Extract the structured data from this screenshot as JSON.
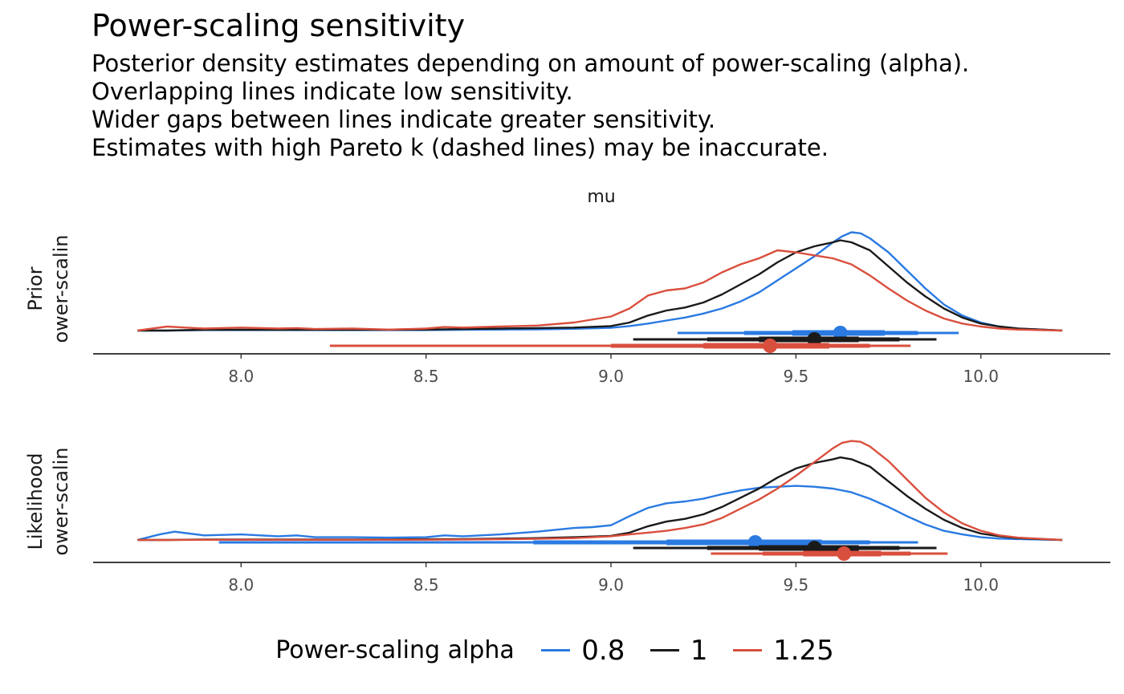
{
  "chart_data": {
    "type": "line",
    "title": "Power-scaling sensitivity",
    "subtitle": [
      "Posterior density estimates depending on amount of power-scaling (alpha).",
      "Overlapping lines indicate low sensitivity.",
      "Wider gaps between lines indicate greater sensitivity.",
      "Estimates with high Pareto k (dashed lines) may be inaccurate."
    ],
    "facet_label": "mu",
    "xlim": [
      7.6,
      10.35
    ],
    "x_ticks": [
      "8.0",
      "8.5",
      "9.0",
      "9.5",
      "10.0"
    ],
    "x_tick_values": [
      8.0,
      8.5,
      9.0,
      9.5,
      10.0
    ],
    "legend": {
      "title": "Power-scaling alpha",
      "placement": "bottom",
      "entries": [
        {
          "label": "0.8",
          "color": "#2a7ae2"
        },
        {
          "label": "1",
          "color": "#1a1a1a"
        },
        {
          "label": "1.25",
          "color": "#d94f3d"
        }
      ]
    },
    "panels": [
      {
        "row_label_line1": "Prior",
        "row_label_line2": "ower-scalin",
        "ylim": [
          0,
          1.12
        ],
        "series": [
          {
            "name": "0.8",
            "color": "#2a7ae2",
            "x": [
              7.72,
              7.8,
              7.9,
              8.0,
              8.1,
              8.2,
              8.3,
              8.4,
              8.5,
              8.6,
              8.7,
              8.8,
              8.9,
              9.0,
              9.05,
              9.1,
              9.15,
              9.2,
              9.25,
              9.3,
              9.35,
              9.4,
              9.45,
              9.5,
              9.55,
              9.6,
              9.625,
              9.65,
              9.675,
              9.7,
              9.75,
              9.8,
              9.85,
              9.9,
              9.95,
              10.0,
              10.05,
              10.1,
              10.22
            ],
            "y": [
              0,
              0,
              0.005,
              0.005,
              0.005,
              0.005,
              0.005,
              0.005,
              0.005,
              0.008,
              0.01,
              0.012,
              0.018,
              0.028,
              0.045,
              0.07,
              0.1,
              0.13,
              0.17,
              0.22,
              0.29,
              0.38,
              0.5,
              0.62,
              0.74,
              0.88,
              0.94,
              0.98,
              0.97,
              0.92,
              0.78,
              0.6,
              0.42,
              0.26,
              0.15,
              0.08,
              0.04,
              0.02,
              0
            ]
          },
          {
            "name": "1",
            "color": "#1a1a1a",
            "x": [
              7.72,
              7.8,
              7.9,
              8.0,
              8.1,
              8.2,
              8.3,
              8.4,
              8.5,
              8.6,
              8.7,
              8.8,
              8.9,
              9.0,
              9.05,
              9.1,
              9.15,
              9.2,
              9.25,
              9.3,
              9.35,
              9.4,
              9.45,
              9.5,
              9.55,
              9.6,
              9.62,
              9.65,
              9.7,
              9.75,
              9.8,
              9.85,
              9.9,
              9.95,
              10.0,
              10.05,
              10.1,
              10.22
            ],
            "y": [
              0,
              0,
              0.008,
              0.008,
              0.008,
              0.008,
              0.008,
              0.008,
              0.01,
              0.015,
              0.02,
              0.025,
              0.03,
              0.045,
              0.08,
              0.15,
              0.2,
              0.23,
              0.28,
              0.36,
              0.46,
              0.56,
              0.68,
              0.78,
              0.84,
              0.88,
              0.9,
              0.88,
              0.8,
              0.64,
              0.48,
              0.34,
              0.22,
              0.13,
              0.07,
              0.04,
              0.02,
              0
            ]
          },
          {
            "name": "1.25",
            "color": "#d94f3d",
            "x": [
              7.72,
              7.8,
              7.85,
              7.9,
              8.0,
              8.1,
              8.15,
              8.2,
              8.3,
              8.4,
              8.5,
              8.55,
              8.6,
              8.7,
              8.8,
              8.9,
              9.0,
              9.05,
              9.1,
              9.15,
              9.2,
              9.25,
              9.3,
              9.35,
              9.4,
              9.45,
              9.5,
              9.55,
              9.6,
              9.65,
              9.7,
              9.75,
              9.8,
              9.85,
              9.9,
              9.95,
              10.0,
              10.05,
              10.1,
              10.22
            ],
            "y": [
              0,
              0.04,
              0.03,
              0.02,
              0.03,
              0.02,
              0.025,
              0.015,
              0.02,
              0.01,
              0.02,
              0.035,
              0.03,
              0.04,
              0.05,
              0.08,
              0.14,
              0.22,
              0.35,
              0.4,
              0.42,
              0.48,
              0.58,
              0.66,
              0.72,
              0.8,
              0.78,
              0.75,
              0.72,
              0.66,
              0.55,
              0.42,
              0.3,
              0.2,
              0.12,
              0.07,
              0.04,
              0.02,
              0.01,
              0
            ]
          }
        ],
        "intervals": [
          {
            "name": "0.8",
            "color": "#2a7ae2",
            "point": 9.62,
            "inner": [
              9.49,
              9.74
            ],
            "mid": [
              9.36,
              9.83
            ],
            "outer": [
              9.18,
              9.94
            ]
          },
          {
            "name": "1",
            "color": "#1a1a1a",
            "point": 9.55,
            "inner": [
              9.4,
              9.67
            ],
            "mid": [
              9.26,
              9.78
            ],
            "outer": [
              9.06,
              9.88
            ]
          },
          {
            "name": "1.25",
            "color": "#d94f3d",
            "point": 9.43,
            "inner": [
              9.25,
              9.59
            ],
            "mid": [
              9.0,
              9.7
            ],
            "outer": [
              8.24,
              9.81
            ]
          }
        ]
      },
      {
        "row_label_line1": "Likelihood",
        "row_label_line2": "ower-scalin",
        "ylim": [
          0,
          1.12
        ],
        "series": [
          {
            "name": "0.8",
            "color": "#2a7ae2",
            "x": [
              7.72,
              7.78,
              7.82,
              7.86,
              7.9,
              8.0,
              8.1,
              8.15,
              8.2,
              8.3,
              8.4,
              8.5,
              8.55,
              8.6,
              8.7,
              8.8,
              8.9,
              8.95,
              9.0,
              9.05,
              9.1,
              9.15,
              9.2,
              9.25,
              9.3,
              9.35,
              9.4,
              9.45,
              9.5,
              9.55,
              9.6,
              9.65,
              9.7,
              9.75,
              9.8,
              9.85,
              9.9,
              9.95,
              10.0,
              10.05,
              10.1,
              10.22
            ],
            "y": [
              0,
              0.06,
              0.09,
              0.07,
              0.05,
              0.06,
              0.04,
              0.05,
              0.03,
              0.03,
              0.025,
              0.03,
              0.05,
              0.04,
              0.06,
              0.09,
              0.13,
              0.14,
              0.16,
              0.26,
              0.35,
              0.4,
              0.42,
              0.45,
              0.5,
              0.54,
              0.57,
              0.58,
              0.59,
              0.58,
              0.56,
              0.52,
              0.45,
              0.36,
              0.26,
              0.17,
              0.1,
              0.06,
              0.03,
              0.015,
              0.01,
              0
            ]
          },
          {
            "name": "1",
            "color": "#1a1a1a",
            "x": [
              7.72,
              7.8,
              7.9,
              8.0,
              8.1,
              8.2,
              8.3,
              8.4,
              8.5,
              8.6,
              8.7,
              8.8,
              8.9,
              9.0,
              9.05,
              9.1,
              9.15,
              9.2,
              9.25,
              9.3,
              9.35,
              9.4,
              9.45,
              9.5,
              9.55,
              9.6,
              9.62,
              9.65,
              9.7,
              9.75,
              9.8,
              9.85,
              9.9,
              9.95,
              10.0,
              10.05,
              10.1,
              10.22
            ],
            "y": [
              0,
              0,
              0.005,
              0.005,
              0.005,
              0.005,
              0.005,
              0.005,
              0.008,
              0.01,
              0.015,
              0.02,
              0.03,
              0.045,
              0.08,
              0.15,
              0.2,
              0.23,
              0.28,
              0.36,
              0.46,
              0.56,
              0.68,
              0.78,
              0.84,
              0.88,
              0.9,
              0.88,
              0.8,
              0.64,
              0.48,
              0.34,
              0.22,
              0.13,
              0.07,
              0.04,
              0.02,
              0
            ]
          },
          {
            "name": "1.25",
            "color": "#d94f3d",
            "x": [
              7.72,
              7.8,
              7.9,
              8.0,
              8.1,
              8.2,
              8.3,
              8.4,
              8.5,
              8.6,
              8.7,
              8.8,
              8.9,
              9.0,
              9.05,
              9.1,
              9.15,
              9.2,
              9.25,
              9.3,
              9.35,
              9.4,
              9.45,
              9.5,
              9.55,
              9.6,
              9.625,
              9.65,
              9.675,
              9.7,
              9.75,
              9.8,
              9.85,
              9.9,
              9.95,
              10.0,
              10.05,
              10.1,
              10.22
            ],
            "y": [
              0,
              0,
              0.002,
              0.002,
              0.002,
              0.002,
              0.002,
              0.002,
              0.003,
              0.005,
              0.008,
              0.012,
              0.02,
              0.04,
              0.06,
              0.08,
              0.1,
              0.13,
              0.17,
              0.24,
              0.34,
              0.44,
              0.56,
              0.7,
              0.85,
              1.0,
              1.06,
              1.08,
              1.07,
              1.02,
              0.86,
              0.66,
              0.46,
              0.3,
              0.18,
              0.1,
              0.05,
              0.025,
              0
            ]
          }
        ],
        "intervals": [
          {
            "name": "0.8",
            "color": "#2a7ae2",
            "point": 9.39,
            "inner": [
              9.15,
              9.57
            ],
            "mid": [
              8.79,
              9.7
            ],
            "outer": [
              7.94,
              9.83
            ]
          },
          {
            "name": "1",
            "color": "#1a1a1a",
            "point": 9.55,
            "inner": [
              9.4,
              9.67
            ],
            "mid": [
              9.26,
              9.78
            ],
            "outer": [
              9.06,
              9.88
            ]
          },
          {
            "name": "1.25",
            "color": "#d94f3d",
            "point": 9.63,
            "inner": [
              9.52,
              9.73
            ],
            "mid": [
              9.41,
              9.81
            ],
            "outer": [
              9.27,
              9.91
            ]
          }
        ]
      }
    ]
  }
}
